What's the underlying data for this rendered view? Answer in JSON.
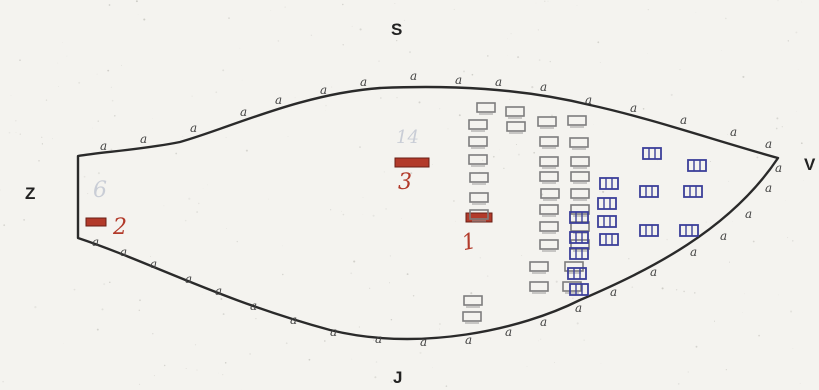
{
  "compass": {
    "north": "S",
    "south": "J",
    "west": "Z",
    "east": "V"
  },
  "markers": {
    "red_2": "2",
    "red_3": "3",
    "red_1": "1"
  },
  "faint_marks": {
    "left": "6",
    "upper": "14"
  },
  "tick_letter": "a",
  "colors": {
    "outline": "#2a2a2a",
    "red": "#b23a2a",
    "gray": "#7d7d7d",
    "blue": "#3b3f9a",
    "background": "#f4f3ef"
  }
}
